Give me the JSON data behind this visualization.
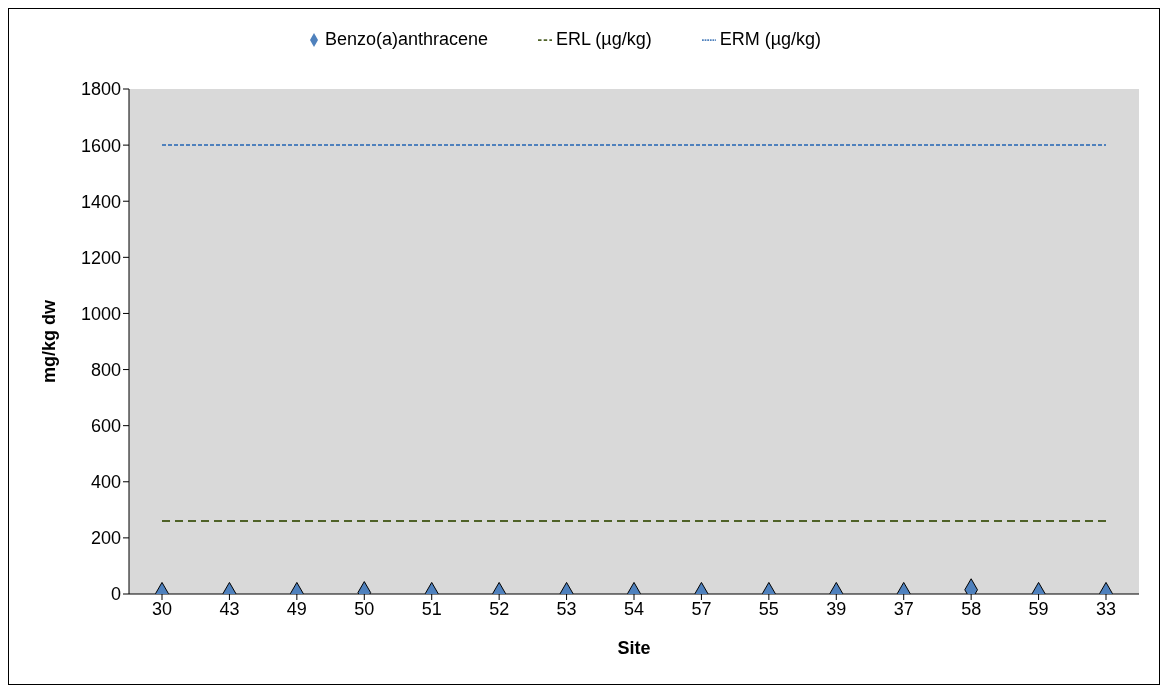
{
  "chart_data": {
    "type": "scatter",
    "xlabel": "Site",
    "ylabel": "mg/kg dw",
    "categories": [
      "30",
      "43",
      "49",
      "50",
      "51",
      "52",
      "53",
      "54",
      "57",
      "55",
      "39",
      "37",
      "58",
      "59",
      "33"
    ],
    "series": [
      {
        "name": "Benzo(a)anthracene",
        "color": "#4f81bd",
        "marker": "diamond",
        "values": [
          2,
          2,
          2,
          5,
          2,
          2,
          2,
          2,
          2,
          2,
          2,
          2,
          15,
          2,
          2
        ]
      },
      {
        "name": "ERL (µg/kg)",
        "type": "line",
        "color": "#4f6228",
        "line_style": "dashed",
        "marker": "none",
        "values": [
          260,
          260,
          260,
          260,
          260,
          260,
          260,
          260,
          260,
          260,
          260,
          260,
          260,
          260,
          260
        ]
      },
      {
        "name": "ERM (µg/kg)",
        "type": "line",
        "color": "#4f81bd",
        "line_style": "dotted",
        "marker": "none",
        "values": [
          1600,
          1600,
          1600,
          1600,
          1600,
          1600,
          1600,
          1600,
          1600,
          1600,
          1600,
          1600,
          1600,
          1600,
          1600
        ]
      }
    ],
    "ylim": [
      0,
      1800
    ],
    "yticks": [
      0,
      200,
      400,
      600,
      800,
      1000,
      1200,
      1400,
      1600,
      1800
    ],
    "grid": false,
    "legend": "top"
  }
}
